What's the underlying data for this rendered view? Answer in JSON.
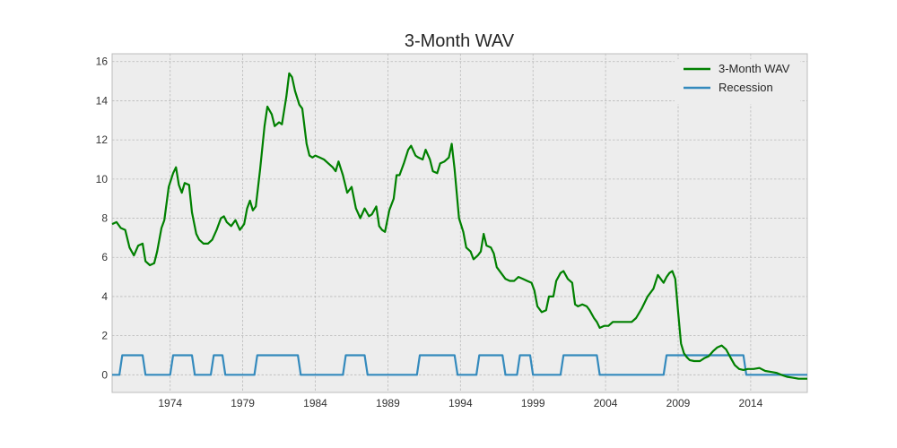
{
  "chart_data": {
    "type": "line",
    "title": "3-Month WAV",
    "xlabel": "",
    "ylabel": "",
    "xlim": [
      1970.0,
      2017.9
    ],
    "ylim": [
      -0.9,
      16.4
    ],
    "xticks": [
      1974,
      1979,
      1984,
      1989,
      1994,
      1999,
      2004,
      2009,
      2014
    ],
    "yticks": [
      0,
      2,
      4,
      6,
      8,
      10,
      12,
      14,
      16
    ],
    "grid": true,
    "legend_position": "top-right",
    "series": [
      {
        "name": "3-Month WAV",
        "color": "#008000",
        "points": [
          [
            1970.0,
            7.7
          ],
          [
            1970.3,
            7.8
          ],
          [
            1970.6,
            7.5
          ],
          [
            1970.9,
            7.4
          ],
          [
            1971.2,
            6.5
          ],
          [
            1971.5,
            6.1
          ],
          [
            1971.8,
            6.6
          ],
          [
            1972.1,
            6.7
          ],
          [
            1972.3,
            5.8
          ],
          [
            1972.6,
            5.6
          ],
          [
            1972.9,
            5.7
          ],
          [
            1973.1,
            6.3
          ],
          [
            1973.4,
            7.5
          ],
          [
            1973.6,
            7.9
          ],
          [
            1973.9,
            9.6
          ],
          [
            1974.2,
            10.3
          ],
          [
            1974.4,
            10.6
          ],
          [
            1974.6,
            9.7
          ],
          [
            1974.8,
            9.3
          ],
          [
            1975.0,
            9.8
          ],
          [
            1975.3,
            9.7
          ],
          [
            1975.5,
            8.3
          ],
          [
            1975.8,
            7.2
          ],
          [
            1976.0,
            6.9
          ],
          [
            1976.3,
            6.7
          ],
          [
            1976.6,
            6.7
          ],
          [
            1976.9,
            6.9
          ],
          [
            1977.2,
            7.4
          ],
          [
            1977.5,
            8.0
          ],
          [
            1977.7,
            8.1
          ],
          [
            1977.9,
            7.8
          ],
          [
            1978.2,
            7.6
          ],
          [
            1978.5,
            7.9
          ],
          [
            1978.8,
            7.4
          ],
          [
            1979.1,
            7.7
          ],
          [
            1979.3,
            8.5
          ],
          [
            1979.5,
            8.9
          ],
          [
            1979.7,
            8.4
          ],
          [
            1979.9,
            8.6
          ],
          [
            1980.2,
            10.5
          ],
          [
            1980.5,
            12.7
          ],
          [
            1980.7,
            13.7
          ],
          [
            1981.0,
            13.3
          ],
          [
            1981.2,
            12.7
          ],
          [
            1981.5,
            12.9
          ],
          [
            1981.7,
            12.8
          ],
          [
            1982.0,
            14.2
          ],
          [
            1982.2,
            15.4
          ],
          [
            1982.4,
            15.2
          ],
          [
            1982.6,
            14.5
          ],
          [
            1982.9,
            13.8
          ],
          [
            1983.1,
            13.6
          ],
          [
            1983.4,
            11.8
          ],
          [
            1983.6,
            11.2
          ],
          [
            1983.8,
            11.1
          ],
          [
            1984.0,
            11.2
          ],
          [
            1984.3,
            11.1
          ],
          [
            1984.6,
            11.0
          ],
          [
            1984.9,
            10.8
          ],
          [
            1985.2,
            10.6
          ],
          [
            1985.4,
            10.4
          ],
          [
            1985.6,
            10.9
          ],
          [
            1985.9,
            10.2
          ],
          [
            1986.2,
            9.3
          ],
          [
            1986.5,
            9.6
          ],
          [
            1986.8,
            8.5
          ],
          [
            1987.1,
            8.0
          ],
          [
            1987.4,
            8.5
          ],
          [
            1987.7,
            8.1
          ],
          [
            1987.9,
            8.2
          ],
          [
            1988.2,
            8.6
          ],
          [
            1988.4,
            7.6
          ],
          [
            1988.6,
            7.4
          ],
          [
            1988.8,
            7.3
          ],
          [
            1989.1,
            8.4
          ],
          [
            1989.4,
            9.0
          ],
          [
            1989.6,
            10.2
          ],
          [
            1989.8,
            10.2
          ],
          [
            1990.1,
            10.8
          ],
          [
            1990.4,
            11.5
          ],
          [
            1990.6,
            11.7
          ],
          [
            1990.9,
            11.2
          ],
          [
            1991.1,
            11.1
          ],
          [
            1991.4,
            11.0
          ],
          [
            1991.6,
            11.5
          ],
          [
            1991.9,
            11.0
          ],
          [
            1992.1,
            10.4
          ],
          [
            1992.4,
            10.3
          ],
          [
            1992.6,
            10.8
          ],
          [
            1992.9,
            10.9
          ],
          [
            1993.2,
            11.1
          ],
          [
            1993.4,
            11.8
          ],
          [
            1993.6,
            10.5
          ],
          [
            1993.9,
            8.0
          ],
          [
            1994.2,
            7.3
          ],
          [
            1994.4,
            6.5
          ],
          [
            1994.7,
            6.3
          ],
          [
            1994.9,
            5.9
          ],
          [
            1995.2,
            6.1
          ],
          [
            1995.4,
            6.3
          ],
          [
            1995.6,
            7.2
          ],
          [
            1995.8,
            6.6
          ],
          [
            1996.1,
            6.5
          ],
          [
            1996.3,
            6.2
          ],
          [
            1996.5,
            5.5
          ],
          [
            1996.8,
            5.2
          ],
          [
            1997.1,
            4.9
          ],
          [
            1997.4,
            4.8
          ],
          [
            1997.7,
            4.8
          ],
          [
            1998.0,
            5.0
          ],
          [
            1998.3,
            4.9
          ],
          [
            1998.6,
            4.8
          ],
          [
            1998.9,
            4.7
          ],
          [
            1999.1,
            4.3
          ],
          [
            1999.3,
            3.5
          ],
          [
            1999.6,
            3.2
          ],
          [
            1999.9,
            3.3
          ],
          [
            2000.1,
            4.0
          ],
          [
            2000.4,
            4.0
          ],
          [
            2000.6,
            4.8
          ],
          [
            2000.9,
            5.2
          ],
          [
            2001.1,
            5.3
          ],
          [
            2001.4,
            4.9
          ],
          [
            2001.7,
            4.7
          ],
          [
            2001.9,
            3.6
          ],
          [
            2002.1,
            3.5
          ],
          [
            2002.4,
            3.6
          ],
          [
            2002.7,
            3.5
          ],
          [
            2002.9,
            3.3
          ],
          [
            2003.2,
            2.9
          ],
          [
            2003.4,
            2.7
          ],
          [
            2003.6,
            2.4
          ],
          [
            2003.9,
            2.5
          ],
          [
            2004.2,
            2.5
          ],
          [
            2004.5,
            2.7
          ],
          [
            2004.8,
            2.7
          ],
          [
            2005.1,
            2.7
          ],
          [
            2005.4,
            2.7
          ],
          [
            2005.8,
            2.7
          ],
          [
            2006.1,
            2.9
          ],
          [
            2006.5,
            3.4
          ],
          [
            2006.9,
            4.0
          ],
          [
            2007.3,
            4.4
          ],
          [
            2007.6,
            5.1
          ],
          [
            2007.8,
            4.9
          ],
          [
            2008.0,
            4.7
          ],
          [
            2008.2,
            5.0
          ],
          [
            2008.4,
            5.2
          ],
          [
            2008.6,
            5.3
          ],
          [
            2008.8,
            4.9
          ],
          [
            2009.0,
            3.2
          ],
          [
            2009.2,
            1.6
          ],
          [
            2009.4,
            1.1
          ],
          [
            2009.6,
            0.9
          ],
          [
            2009.8,
            0.75
          ],
          [
            2010.1,
            0.7
          ],
          [
            2010.5,
            0.7
          ],
          [
            2010.8,
            0.85
          ],
          [
            2011.1,
            0.95
          ],
          [
            2011.4,
            1.2
          ],
          [
            2011.7,
            1.4
          ],
          [
            2012.0,
            1.5
          ],
          [
            2012.3,
            1.3
          ],
          [
            2012.6,
            0.9
          ],
          [
            2012.9,
            0.5
          ],
          [
            2013.2,
            0.3
          ],
          [
            2013.5,
            0.25
          ],
          [
            2013.8,
            0.3
          ],
          [
            2014.2,
            0.3
          ],
          [
            2014.6,
            0.35
          ],
          [
            2015.0,
            0.2
          ],
          [
            2015.4,
            0.15
          ],
          [
            2015.8,
            0.1
          ],
          [
            2016.1,
            0.0
          ],
          [
            2016.5,
            -0.1
          ],
          [
            2016.9,
            -0.15
          ],
          [
            2017.3,
            -0.2
          ],
          [
            2017.9,
            -0.2
          ]
        ]
      },
      {
        "name": "Recession",
        "color": "#348ABD",
        "points": [
          [
            1970.0,
            0
          ],
          [
            1970.5,
            0
          ],
          [
            1970.7,
            1
          ],
          [
            1972.1,
            1
          ],
          [
            1972.3,
            0
          ],
          [
            1974.0,
            0
          ],
          [
            1974.2,
            1
          ],
          [
            1975.5,
            1
          ],
          [
            1975.7,
            0
          ],
          [
            1976.8,
            0
          ],
          [
            1977.0,
            1
          ],
          [
            1977.6,
            1
          ],
          [
            1977.8,
            0
          ],
          [
            1979.8,
            0
          ],
          [
            1980.0,
            1
          ],
          [
            1982.8,
            1
          ],
          [
            1983.0,
            0
          ],
          [
            1985.9,
            0
          ],
          [
            1986.1,
            1
          ],
          [
            1987.4,
            1
          ],
          [
            1987.6,
            0
          ],
          [
            1991.0,
            0
          ],
          [
            1991.2,
            1
          ],
          [
            1993.6,
            1
          ],
          [
            1993.8,
            0
          ],
          [
            1995.1,
            0
          ],
          [
            1995.3,
            1
          ],
          [
            1996.9,
            1
          ],
          [
            1997.1,
            0
          ],
          [
            1997.9,
            0
          ],
          [
            1998.1,
            1
          ],
          [
            1998.8,
            1
          ],
          [
            1999.0,
            0
          ],
          [
            2000.9,
            0
          ],
          [
            2001.1,
            1
          ],
          [
            2003.4,
            1
          ],
          [
            2003.6,
            0
          ],
          [
            2008.0,
            0
          ],
          [
            2008.2,
            1
          ],
          [
            2011.7,
            1
          ],
          [
            2011.9,
            1
          ],
          [
            2013.5,
            1
          ],
          [
            2013.7,
            0
          ],
          [
            2017.9,
            0
          ]
        ]
      }
    ]
  }
}
